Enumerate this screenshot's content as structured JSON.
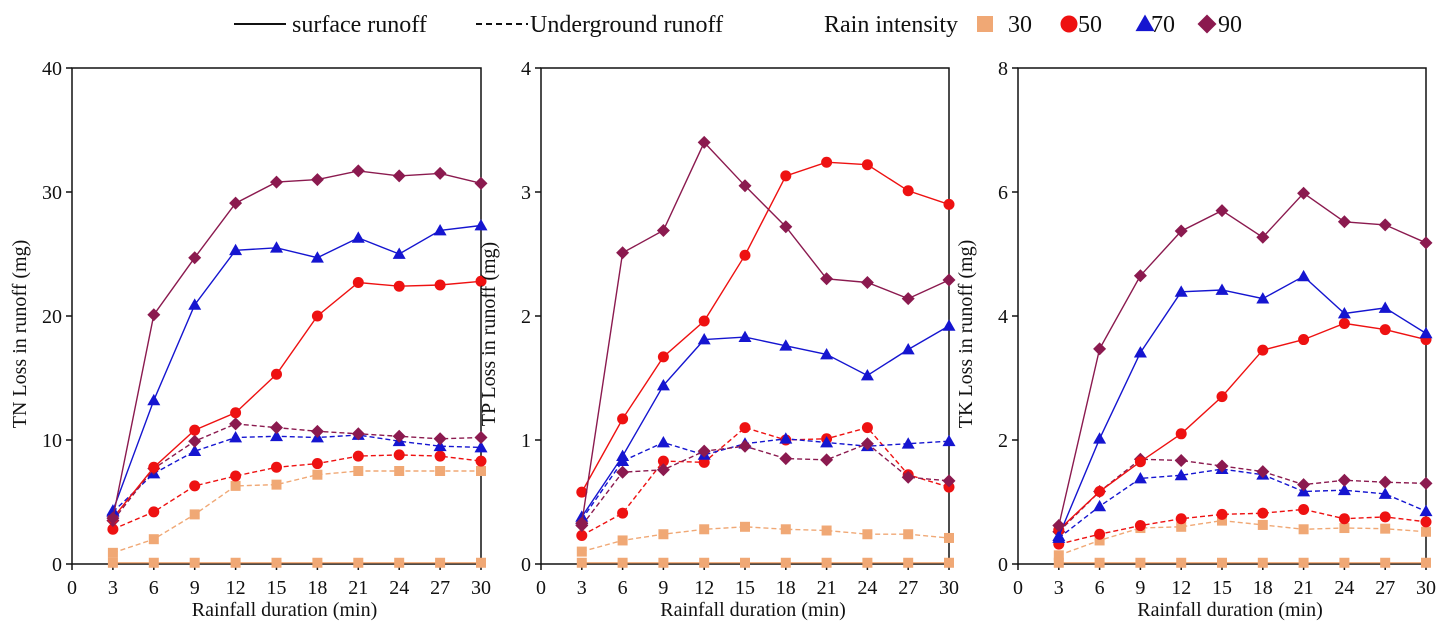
{
  "legend": {
    "surface_label": "surface runoff",
    "underground_label": "Underground runoff",
    "intensity_title": "Rain intensity",
    "intensities": [
      {
        "label": "30",
        "marker": "square",
        "color": "#F0A875"
      },
      {
        "label": "50",
        "marker": "circle",
        "color": "#EE1111"
      },
      {
        "label": "70",
        "marker": "triangle",
        "color": "#1515D0"
      },
      {
        "label": "90",
        "marker": "diamond",
        "color": "#8B1A4F"
      }
    ]
  },
  "chart_data": [
    {
      "type": "line",
      "ylabel": "TN Loss in runoff (mg)",
      "xlabel": "Rainfall duration  (min)",
      "xlim": [
        0,
        30
      ],
      "ylim": [
        0,
        40
      ],
      "xticks": [
        "0",
        "3",
        "6",
        "9",
        "12",
        "15",
        "18",
        "21",
        "24",
        "27",
        "30"
      ],
      "yticks": [
        "0",
        "10",
        "20",
        "30",
        "40"
      ],
      "x": [
        3,
        6,
        9,
        12,
        15,
        18,
        21,
        24,
        27,
        30
      ],
      "series": [
        {
          "name": "30",
          "runoff": "surface",
          "values": [
            0.1,
            0.1,
            0.1,
            0.1,
            0.1,
            0.1,
            0.1,
            0.1,
            0.1,
            0.1
          ]
        },
        {
          "name": "50",
          "runoff": "surface",
          "values": [
            3.7,
            7.8,
            10.8,
            12.2,
            15.3,
            20.0,
            22.7,
            22.4,
            22.5,
            22.8
          ]
        },
        {
          "name": "70",
          "runoff": "surface",
          "values": [
            4.3,
            13.2,
            20.9,
            25.3,
            25.5,
            24.7,
            26.3,
            25.0,
            26.9,
            27.3
          ]
        },
        {
          "name": "90",
          "runoff": "surface",
          "values": [
            3.7,
            20.1,
            24.7,
            29.1,
            30.8,
            31.0,
            31.7,
            31.3,
            31.5,
            30.7
          ]
        },
        {
          "name": "30",
          "runoff": "underground",
          "values": [
            0.9,
            2.0,
            4.0,
            6.3,
            6.4,
            7.2,
            7.5,
            7.5,
            7.5,
            7.5
          ]
        },
        {
          "name": "50",
          "runoff": "underground",
          "values": [
            2.8,
            4.2,
            6.3,
            7.1,
            7.8,
            8.1,
            8.7,
            8.8,
            8.7,
            8.3
          ]
        },
        {
          "name": "70",
          "runoff": "underground",
          "values": [
            4.2,
            7.3,
            9.1,
            10.2,
            10.3,
            10.2,
            10.4,
            9.9,
            9.5,
            9.4
          ]
        },
        {
          "name": "90",
          "runoff": "underground",
          "values": [
            3.5,
            7.7,
            9.9,
            11.3,
            11.0,
            10.7,
            10.5,
            10.3,
            10.1,
            10.2
          ]
        }
      ]
    },
    {
      "type": "line",
      "ylabel": "TP Loss in runoff (mg)",
      "xlabel": "Rainfall duration  (min)",
      "xlim": [
        0,
        30
      ],
      "ylim": [
        0,
        4
      ],
      "xticks": [
        "0",
        "3",
        "6",
        "9",
        "12",
        "15",
        "18",
        "21",
        "24",
        "27",
        "30"
      ],
      "yticks": [
        "0",
        "1",
        "2",
        "3",
        "4"
      ],
      "x": [
        3,
        6,
        9,
        12,
        15,
        18,
        21,
        24,
        27,
        30
      ],
      "series": [
        {
          "name": "30",
          "runoff": "surface",
          "values": [
            0.01,
            0.01,
            0.01,
            0.01,
            0.01,
            0.01,
            0.01,
            0.01,
            0.01,
            0.01
          ]
        },
        {
          "name": "50",
          "runoff": "surface",
          "values": [
            0.58,
            1.17,
            1.67,
            1.96,
            2.49,
            3.13,
            3.24,
            3.22,
            3.01,
            2.9
          ]
        },
        {
          "name": "70",
          "runoff": "surface",
          "values": [
            0.38,
            0.87,
            1.44,
            1.81,
            1.83,
            1.76,
            1.69,
            1.52,
            1.73,
            1.92
          ]
        },
        {
          "name": "90",
          "runoff": "surface",
          "values": [
            0.33,
            2.51,
            2.69,
            3.4,
            3.05,
            2.72,
            2.3,
            2.27,
            2.14,
            2.29
          ]
        },
        {
          "name": "30",
          "runoff": "underground",
          "values": [
            0.1,
            0.19,
            0.24,
            0.28,
            0.3,
            0.28,
            0.27,
            0.24,
            0.24,
            0.21
          ]
        },
        {
          "name": "50",
          "runoff": "underground",
          "values": [
            0.23,
            0.41,
            0.83,
            0.82,
            1.1,
            1.0,
            1.01,
            1.1,
            0.72,
            0.62
          ]
        },
        {
          "name": "70",
          "runoff": "underground",
          "values": [
            0.36,
            0.83,
            0.98,
            0.88,
            0.97,
            1.01,
            0.98,
            0.95,
            0.97,
            0.99
          ]
        },
        {
          "name": "90",
          "runoff": "underground",
          "values": [
            0.31,
            0.74,
            0.76,
            0.91,
            0.95,
            0.85,
            0.84,
            0.97,
            0.7,
            0.67
          ]
        }
      ]
    },
    {
      "type": "line",
      "ylabel": "TK Loss in runoff (mg)",
      "xlabel": "Rainfall duration  (min)",
      "xlim": [
        0,
        30
      ],
      "ylim": [
        0,
        8
      ],
      "xticks": [
        "0",
        "3",
        "6",
        "9",
        "12",
        "15",
        "18",
        "21",
        "24",
        "27",
        "30"
      ],
      "yticks": [
        "0",
        "2",
        "4",
        "6",
        "8"
      ],
      "x": [
        3,
        6,
        9,
        12,
        15,
        18,
        21,
        24,
        27,
        30
      ],
      "series": [
        {
          "name": "30",
          "runoff": "surface",
          "values": [
            0.02,
            0.02,
            0.02,
            0.02,
            0.02,
            0.02,
            0.02,
            0.02,
            0.02,
            0.02
          ]
        },
        {
          "name": "50",
          "runoff": "surface",
          "values": [
            0.55,
            1.17,
            1.65,
            2.1,
            2.7,
            3.45,
            3.62,
            3.88,
            3.78,
            3.62
          ]
        },
        {
          "name": "70",
          "runoff": "surface",
          "values": [
            0.45,
            2.02,
            3.41,
            4.39,
            4.42,
            4.28,
            4.64,
            4.04,
            4.13,
            3.72
          ]
        },
        {
          "name": "90",
          "runoff": "surface",
          "values": [
            0.62,
            3.47,
            4.65,
            5.37,
            5.7,
            5.27,
            5.98,
            5.52,
            5.47,
            5.18
          ]
        },
        {
          "name": "30",
          "runoff": "underground",
          "values": [
            0.14,
            0.38,
            0.58,
            0.6,
            0.7,
            0.63,
            0.56,
            0.58,
            0.57,
            0.52
          ]
        },
        {
          "name": "50",
          "runoff": "underground",
          "values": [
            0.32,
            0.48,
            0.62,
            0.73,
            0.8,
            0.82,
            0.88,
            0.73,
            0.76,
            0.68
          ]
        },
        {
          "name": "70",
          "runoff": "underground",
          "values": [
            0.42,
            0.93,
            1.38,
            1.43,
            1.53,
            1.44,
            1.17,
            1.19,
            1.13,
            0.85
          ]
        },
        {
          "name": "90",
          "runoff": "underground",
          "values": [
            0.52,
            1.17,
            1.69,
            1.67,
            1.58,
            1.49,
            1.28,
            1.35,
            1.32,
            1.3
          ]
        }
      ]
    }
  ]
}
